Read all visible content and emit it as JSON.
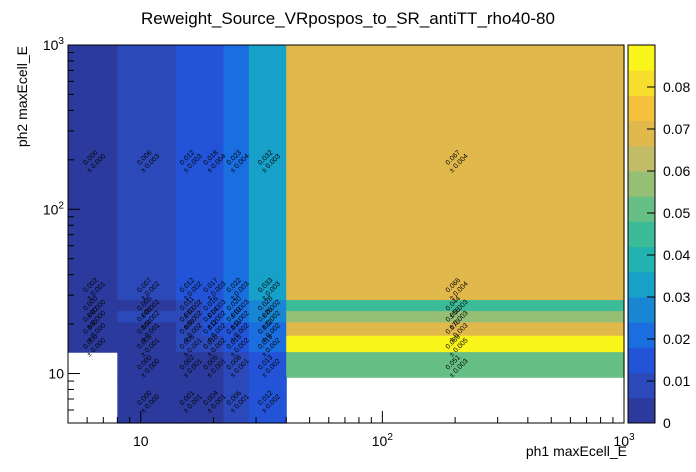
{
  "chart_data": {
    "type": "heatmap",
    "title": "Reweight_Source_VRpospos_to_SR_antiTT_rho40-80",
    "xlabel": "ph1 maxEcell_E",
    "ylabel": "ph2 maxEcell_E",
    "x_scale": "log",
    "y_scale": "log",
    "xlim": [
      5,
      1000
    ],
    "ylim": [
      5,
      1000
    ],
    "x_ticks": [
      {
        "value": 10,
        "label": "10"
      },
      {
        "value": 100,
        "label": "10^2"
      },
      {
        "value": 1000,
        "label": "10^3"
      }
    ],
    "y_ticks": [
      {
        "value": 10,
        "label": "10"
      },
      {
        "value": 100,
        "label": "10^2"
      },
      {
        "value": 1000,
        "label": "10^3"
      }
    ],
    "x_edges": [
      5,
      8,
      14,
      18,
      22,
      28,
      40,
      1000
    ],
    "y_edges": [
      5,
      9.5,
      13.5,
      17,
      20.5,
      24,
      28,
      40,
      1000
    ],
    "z_range": [
      0,
      0.09
    ],
    "colorbar": {
      "ticks": [
        "0",
        "0.01",
        "0.02",
        "0.03",
        "0.04",
        "0.05",
        "0.06",
        "0.07",
        "0.08"
      ],
      "tick_values": [
        0,
        0.01,
        0.02,
        0.03,
        0.04,
        0.05,
        0.06,
        0.07,
        0.08
      ],
      "colors": [
        "#2b3a9c",
        "#2c49b9",
        "#2354d8",
        "#1a6ee0",
        "#1986d4",
        "#17a0c8",
        "#22b2b0",
        "#3bbb98",
        "#66bf85",
        "#94bf74",
        "#c2bc66",
        "#e0b84c",
        "#f4c13c",
        "#f8de2c",
        "#f9f51b"
      ]
    },
    "cells": [
      {
        "ix": 0,
        "iy": 7,
        "value": 0.0,
        "text": "0.000",
        "err": "± 0.000"
      },
      {
        "ix": 1,
        "iy": 7,
        "value": 0.006,
        "text": "0.006",
        "err": "± 0.003"
      },
      {
        "ix": 2,
        "iy": 7,
        "value": 0.012,
        "text": "0.012",
        "err": "± 0.003"
      },
      {
        "ix": 3,
        "iy": 7,
        "value": 0.018,
        "text": "0.018",
        "err": "± 0.004"
      },
      {
        "ix": 4,
        "iy": 7,
        "value": 0.023,
        "text": "0.023",
        "err": "± 0.004"
      },
      {
        "ix": 5,
        "iy": 7,
        "value": 0.032,
        "text": "0.032",
        "err": "± 0.003"
      },
      {
        "ix": 6,
        "iy": 7,
        "value": 0.067,
        "text": "0.067",
        "err": "± 0.004"
      },
      {
        "ix": 0,
        "iy": 6,
        "value": 0.002,
        "text": "0.002",
        "err": "± 0.001"
      },
      {
        "ix": 1,
        "iy": 6,
        "value": 0.007,
        "text": "0.007",
        "err": "± 0.002"
      },
      {
        "ix": 2,
        "iy": 6,
        "value": 0.012,
        "text": "0.012",
        "err": "± 0.002"
      },
      {
        "ix": 3,
        "iy": 6,
        "value": 0.017,
        "text": "0.017",
        "err": "± 0.003"
      },
      {
        "ix": 4,
        "iy": 6,
        "value": 0.022,
        "text": "0.022",
        "err": "± 0.003"
      },
      {
        "ix": 5,
        "iy": 6,
        "value": 0.033,
        "text": "0.033",
        "err": "± 0.003"
      },
      {
        "ix": 6,
        "iy": 6,
        "value": 0.066,
        "text": "0.066",
        "err": "± 0.004"
      },
      {
        "ix": 0,
        "iy": 5,
        "value": 0.0,
        "text": "0.000",
        "err": "± 0.000"
      },
      {
        "ix": 1,
        "iy": 5,
        "value": 0.005,
        "text": "0.005",
        "err": "± 0.002"
      },
      {
        "ix": 2,
        "iy": 5,
        "value": 0.011,
        "text": "0.011",
        "err": "± 0.002"
      },
      {
        "ix": 3,
        "iy": 5,
        "value": 0.016,
        "text": "0.016",
        "err": "± 0.003"
      },
      {
        "ix": 4,
        "iy": 5,
        "value": 0.02,
        "text": "0.020",
        "err": "± 0.003"
      },
      {
        "ix": 5,
        "iy": 5,
        "value": 0.028,
        "text": "0.028",
        "err": "± 0.002"
      },
      {
        "ix": 6,
        "iy": 5,
        "value": 0.044,
        "text": "0.044",
        "err": "± 0.003"
      },
      {
        "ix": 0,
        "iy": 4,
        "value": 0.0,
        "text": "0.000",
        "err": "± 0.000"
      },
      {
        "ix": 1,
        "iy": 4,
        "value": 0.006,
        "text": "0.006",
        "err": "± 0.002"
      },
      {
        "ix": 2,
        "iy": 4,
        "value": 0.01,
        "text": "0.010",
        "err": "± 0.002"
      },
      {
        "ix": 3,
        "iy": 4,
        "value": 0.014,
        "text": "0.014",
        "err": "± 0.002"
      },
      {
        "ix": 4,
        "iy": 4,
        "value": 0.019,
        "text": "0.019",
        "err": "± 0.002"
      },
      {
        "ix": 5,
        "iy": 4,
        "value": 0.026,
        "text": "0.026",
        "err": "± 0.002"
      },
      {
        "ix": 6,
        "iy": 4,
        "value": 0.056,
        "text": "0.056",
        "err": "± 0.003"
      },
      {
        "ix": 0,
        "iy": 3,
        "value": 0.0,
        "text": "0.000",
        "err": "± 0.000"
      },
      {
        "ix": 1,
        "iy": 3,
        "value": 0.004,
        "text": "0.004",
        "err": "± 0.001"
      },
      {
        "ix": 2,
        "iy": 3,
        "value": 0.008,
        "text": "0.008",
        "err": "± 0.002"
      },
      {
        "ix": 3,
        "iy": 3,
        "value": 0.012,
        "text": "0.012",
        "err": "± 0.002"
      },
      {
        "ix": 4,
        "iy": 3,
        "value": 0.016,
        "text": "0.016",
        "err": "± 0.002"
      },
      {
        "ix": 5,
        "iy": 3,
        "value": 0.022,
        "text": "0.022",
        "err": "± 0.002"
      },
      {
        "ix": 6,
        "iy": 3,
        "value": 0.07,
        "text": "0.070",
        "err": "± 0.003"
      },
      {
        "ix": 0,
        "iy": 2,
        "value": 0.0,
        "text": "0.000",
        "err": "± 0.000"
      },
      {
        "ix": 1,
        "iy": 2,
        "value": 0.003,
        "text": "0.003",
        "err": "± 0.001"
      },
      {
        "ix": 2,
        "iy": 2,
        "value": 0.006,
        "text": "0.006",
        "err": "± 0.001"
      },
      {
        "ix": 3,
        "iy": 2,
        "value": 0.01,
        "text": "0.010",
        "err": "± 0.002"
      },
      {
        "ix": 4,
        "iy": 2,
        "value": 0.015,
        "text": "0.015",
        "err": "± 0.002"
      },
      {
        "ix": 5,
        "iy": 2,
        "value": 0.019,
        "text": "0.019",
        "err": "± 0.002"
      },
      {
        "ix": 6,
        "iy": 2,
        "value": 0.089,
        "text": "0.089",
        "err": "± 0.005"
      },
      {
        "ix": 1,
        "iy": 1,
        "value": 0.0,
        "text": "0.000",
        "err": "± 0.000"
      },
      {
        "ix": 2,
        "iy": 1,
        "value": 0.002,
        "text": "0.002",
        "err": "± 0.001"
      },
      {
        "ix": 3,
        "iy": 1,
        "value": 0.005,
        "text": "0.005",
        "err": "± 0.001"
      },
      {
        "ix": 4,
        "iy": 1,
        "value": 0.008,
        "text": "0.008",
        "err": "± 0.001"
      },
      {
        "ix": 5,
        "iy": 1,
        "value": 0.013,
        "text": "0.013",
        "err": "± 0.002"
      },
      {
        "ix": 6,
        "iy": 1,
        "value": 0.051,
        "text": "0.051",
        "err": "± 0.003"
      },
      {
        "ix": 1,
        "iy": 0,
        "value": 0.0,
        "text": "0.000",
        "err": "± 0.000"
      },
      {
        "ix": 2,
        "iy": 0,
        "value": 0.001,
        "text": "0.001",
        "err": "± 0.001"
      },
      {
        "ix": 3,
        "iy": 0,
        "value": 0.004,
        "text": "0.004",
        "err": "± 0.001"
      },
      {
        "ix": 4,
        "iy": 0,
        "value": 0.006,
        "text": "0.006",
        "err": "± 0.001"
      },
      {
        "ix": 5,
        "iy": 0,
        "value": 0.012,
        "text": "0.012",
        "err": "± 0.002"
      }
    ]
  }
}
